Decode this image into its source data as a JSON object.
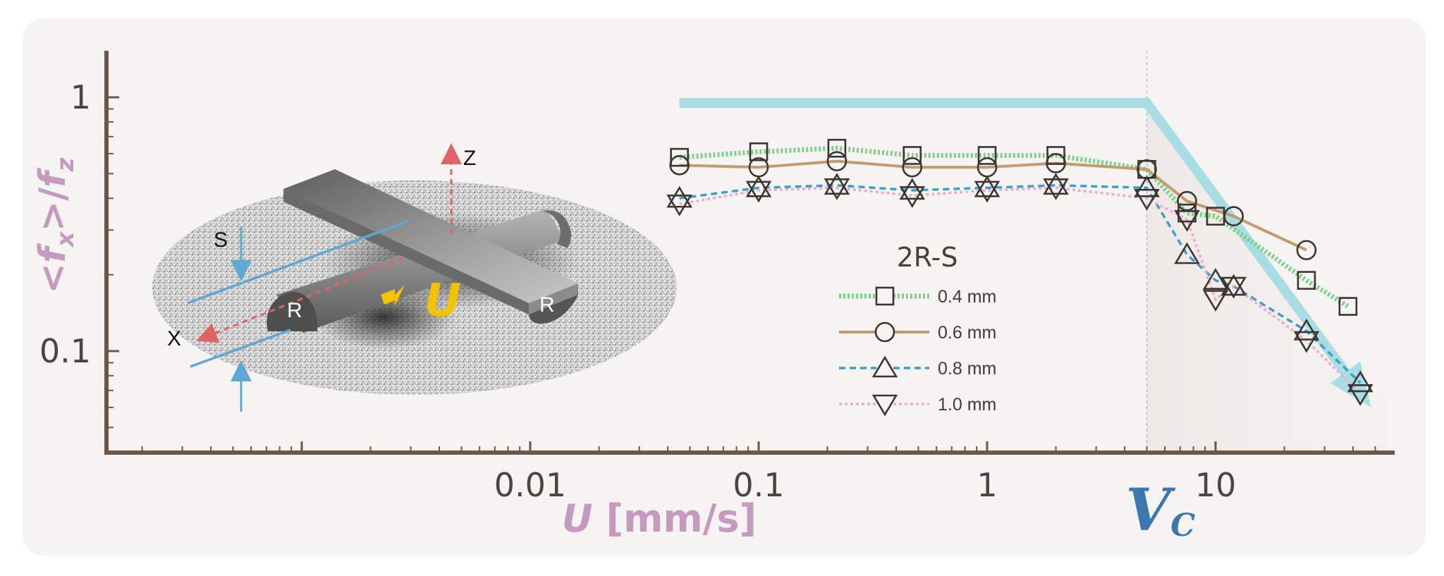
{
  "chart_data": {
    "type": "line",
    "x_scale": "log",
    "y_scale": "log",
    "xlim": [
      0.0001,
      60
    ],
    "ylim": [
      0.04,
      1.6
    ],
    "xlabel": {
      "main": "U",
      "units": " [mm/s]"
    },
    "ylabel": {
      "open": "<",
      "f1": "f",
      "sub1": "x",
      "mid": ">/",
      "f2": "f",
      "sub2": "z"
    },
    "x_ticks": [
      {
        "value": 0.01,
        "label": "0.01"
      },
      {
        "value": 0.1,
        "label": "0.1"
      },
      {
        "value": 1,
        "label": "1"
      },
      {
        "value": 10,
        "label": "10"
      }
    ],
    "y_ticks": [
      {
        "value": 1,
        "label": "1"
      },
      {
        "value": 0.1,
        "label": "0.1"
      }
    ],
    "critical_velocity": {
      "value": 5,
      "label": {
        "main": "V",
        "sub": "C"
      }
    },
    "guide_line": {
      "plateau_y": 0.95,
      "start_x": 0.045,
      "end_x": 48,
      "end_y": 0.06,
      "color": "#a8dde3"
    },
    "legend_title": "2R-S",
    "legend_position": "center",
    "series": [
      {
        "name": "0.4 mm",
        "marker": "square",
        "color": "#7ed18a",
        "line": "dotted-thick",
        "x": [
          0.045,
          0.1,
          0.22,
          0.47,
          1.0,
          2.0,
          5.0,
          7.5,
          10,
          25,
          38
        ],
        "y": [
          0.58,
          0.61,
          0.63,
          0.59,
          0.59,
          0.59,
          0.52,
          0.35,
          0.34,
          0.19,
          0.15
        ]
      },
      {
        "name": "0.6 mm",
        "marker": "circle",
        "color": "#c49a70",
        "line": "solid",
        "x": [
          0.045,
          0.1,
          0.22,
          0.47,
          1.0,
          2.0,
          5.0,
          7.5,
          12,
          25
        ],
        "y": [
          0.54,
          0.53,
          0.56,
          0.53,
          0.53,
          0.55,
          0.52,
          0.39,
          0.34,
          0.25
        ]
      },
      {
        "name": "0.8 mm",
        "marker": "triangle-up",
        "color": "#3ea0c8",
        "line": "dashed",
        "x": [
          0.045,
          0.1,
          0.22,
          0.47,
          1.0,
          2.0,
          5.0,
          7.5,
          10,
          12,
          25,
          43
        ],
        "y": [
          0.4,
          0.44,
          0.45,
          0.43,
          0.44,
          0.45,
          0.44,
          0.24,
          0.19,
          0.18,
          0.12,
          0.075
        ]
      },
      {
        "name": "1.0 mm",
        "marker": "triangle-down",
        "color": "#f0a8cc",
        "line": "dotted",
        "x": [
          0.045,
          0.1,
          0.22,
          0.47,
          1.0,
          2.0,
          5.0,
          7.5,
          10,
          12,
          25,
          43
        ],
        "y": [
          0.38,
          0.43,
          0.44,
          0.41,
          0.43,
          0.44,
          0.4,
          0.33,
          0.16,
          0.18,
          0.11,
          0.068
        ]
      }
    ]
  },
  "inset": {
    "axis_z": "Z",
    "axis_x": "X",
    "gap_label": "S",
    "radius_left": "R",
    "radius_right": "R",
    "motion_label": "U"
  }
}
